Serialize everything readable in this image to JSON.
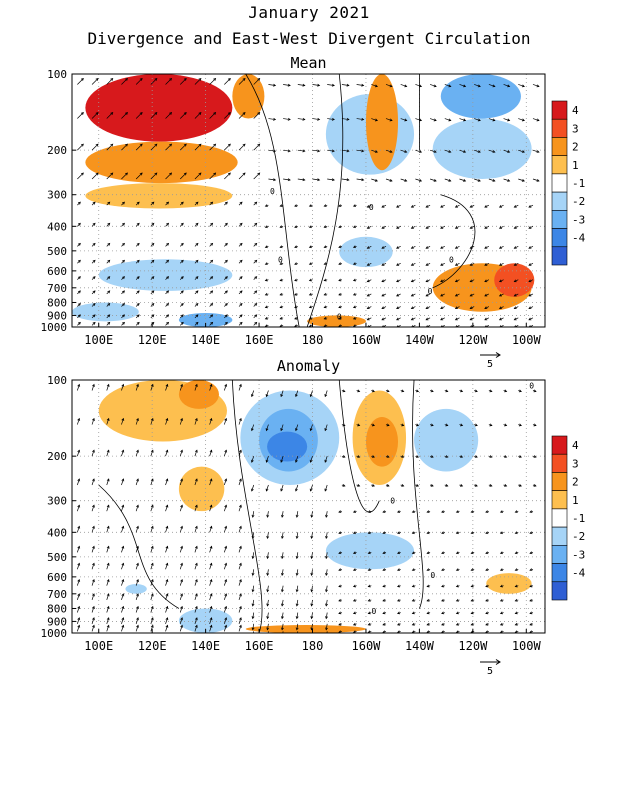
{
  "title": "January 2021",
  "subtitle": "Divergence and East-West Divergent Circulation",
  "chart_data": [
    {
      "type": "heatmap",
      "panel_title": "Mean",
      "x_ticks": [
        "100E",
        "120E",
        "140E",
        "160E",
        "180",
        "160W",
        "140W",
        "120W",
        "100W"
      ],
      "x_tick_lon": [
        100,
        120,
        140,
        160,
        180,
        200,
        220,
        240,
        260
      ],
      "xlim": [
        90,
        267
      ],
      "y_ticks": [
        "100",
        "200",
        "300",
        "400",
        "500",
        "600",
        "700",
        "800",
        "900",
        "1000"
      ],
      "y_tick_values": [
        100,
        200,
        300,
        400,
        500,
        600,
        700,
        800,
        900,
        1000
      ],
      "ylim": [
        100,
        1000
      ],
      "y_scale": "log",
      "colorbar_levels": [
        "4",
        "3",
        "2",
        "1",
        "-1",
        "-2",
        "-3",
        "-4"
      ],
      "colorbar_colors": [
        "#d7191c",
        "#f35022",
        "#f7941d",
        "#fdbf4f",
        "#ffffff",
        "#a6d4f7",
        "#6ab1f2",
        "#3c86e6",
        "#2f5fd4",
        "#7d6ce0"
      ],
      "contour_label": "0",
      "vector_ref": "5",
      "regions": [
        {
          "lon": [
            95,
            150
          ],
          "p": [
            100,
            185
          ],
          "level": 4
        },
        {
          "lon": [
            150,
            162
          ],
          "p": [
            100,
            150
          ],
          "level": 2
        },
        {
          "lon": [
            95,
            152
          ],
          "p": [
            185,
            270
          ],
          "level": 2
        },
        {
          "lon": [
            95,
            150
          ],
          "p": [
            270,
            340
          ],
          "level": 1
        },
        {
          "lon": [
            185,
            218
          ],
          "p": [
            120,
            250
          ],
          "level": -1
        },
        {
          "lon": [
            200,
            212
          ],
          "p": [
            100,
            240
          ],
          "level": 2
        },
        {
          "lon": [
            228,
            258
          ],
          "p": [
            100,
            150
          ],
          "level": -2
        },
        {
          "lon": [
            225,
            262
          ],
          "p": [
            150,
            260
          ],
          "level": -1
        },
        {
          "lon": [
            190,
            210
          ],
          "p": [
            440,
            580
          ],
          "level": -1
        },
        {
          "lon": [
            100,
            150
          ],
          "p": [
            540,
            720
          ],
          "level": -1
        },
        {
          "lon": [
            90,
            115
          ],
          "p": [
            800,
            950
          ],
          "level": -1
        },
        {
          "lon": [
            130,
            150
          ],
          "p": [
            880,
            1000
          ],
          "level": -2
        },
        {
          "lon": [
            178,
            200
          ],
          "p": [
            900,
            1000
          ],
          "level": 2
        },
        {
          "lon": [
            225,
            262
          ],
          "p": [
            560,
            870
          ],
          "level": 2
        },
        {
          "lon": [
            248,
            263
          ],
          "p": [
            560,
            760
          ],
          "level": 3
        }
      ]
    },
    {
      "type": "heatmap",
      "panel_title": "Anomaly",
      "x_ticks": [
        "100E",
        "120E",
        "140E",
        "160E",
        "180",
        "160W",
        "140W",
        "120W",
        "100W"
      ],
      "x_tick_lon": [
        100,
        120,
        140,
        160,
        180,
        200,
        220,
        240,
        260
      ],
      "xlim": [
        90,
        267
      ],
      "y_ticks": [
        "100",
        "200",
        "300",
        "400",
        "500",
        "600",
        "700",
        "800",
        "900",
        "1000"
      ],
      "y_tick_values": [
        100,
        200,
        300,
        400,
        500,
        600,
        700,
        800,
        900,
        1000
      ],
      "ylim": [
        100,
        1000
      ],
      "y_scale": "log",
      "colorbar_levels": [
        "4",
        "3",
        "2",
        "1",
        "-1",
        "-2",
        "-3",
        "-4"
      ],
      "colorbar_colors": [
        "#d7191c",
        "#f35022",
        "#f7941d",
        "#fdbf4f",
        "#ffffff",
        "#a6d4f7",
        "#6ab1f2",
        "#3c86e6",
        "#2f5fd4",
        "#7d6ce0"
      ],
      "contour_label": "0",
      "vector_ref": "5",
      "regions": [
        {
          "lon": [
            100,
            148
          ],
          "p": [
            100,
            175
          ],
          "level": 1
        },
        {
          "lon": [
            130,
            145
          ],
          "p": [
            100,
            130
          ],
          "level": 2
        },
        {
          "lon": [
            130,
            147
          ],
          "p": [
            220,
            330
          ],
          "level": 1
        },
        {
          "lon": [
            153,
            190
          ],
          "p": [
            110,
            260
          ],
          "level": -1
        },
        {
          "lon": [
            160,
            182
          ],
          "p": [
            130,
            230
          ],
          "level": -2
        },
        {
          "lon": [
            163,
            178
          ],
          "p": [
            160,
            210
          ],
          "level": -3
        },
        {
          "lon": [
            195,
            215
          ],
          "p": [
            110,
            260
          ],
          "level": 1
        },
        {
          "lon": [
            200,
            212
          ],
          "p": [
            140,
            220
          ],
          "level": 2
        },
        {
          "lon": [
            218,
            242
          ],
          "p": [
            130,
            230
          ],
          "level": -1
        },
        {
          "lon": [
            185,
            218
          ],
          "p": [
            400,
            560
          ],
          "level": -1
        },
        {
          "lon": [
            130,
            150
          ],
          "p": [
            800,
            1000
          ],
          "level": -1
        },
        {
          "lon": [
            110,
            118
          ],
          "p": [
            640,
            700
          ],
          "level": -1
        },
        {
          "lon": [
            155,
            200
          ],
          "p": [
            930,
            1000
          ],
          "level": 2
        },
        {
          "lon": [
            245,
            262
          ],
          "p": [
            580,
            700
          ],
          "level": 1
        }
      ]
    }
  ]
}
